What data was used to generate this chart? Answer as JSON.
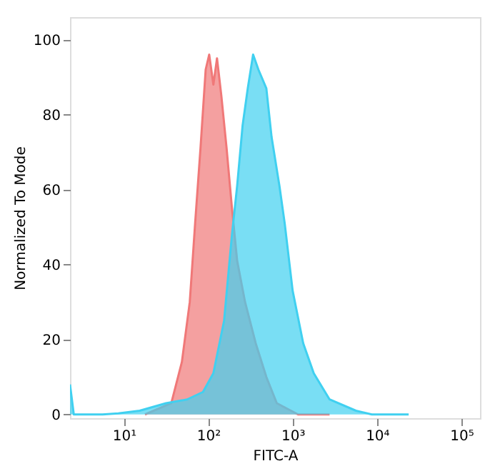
{
  "chart_data": {
    "type": "area",
    "xlabel": "FITC-A",
    "ylabel": "Normalized To Mode",
    "log": "x",
    "grid": false,
    "xlim": [
      2.3,
      166000
    ],
    "ylim": [
      -1,
      106
    ],
    "xticks": [
      {
        "value": 10,
        "label": "10¹"
      },
      {
        "value": 100,
        "label": "10²"
      },
      {
        "value": 1000,
        "label": "10³"
      },
      {
        "value": 10000,
        "label": "10⁴"
      },
      {
        "value": 100000,
        "label": "10⁵"
      }
    ],
    "yticks": [
      0,
      20,
      40,
      60,
      80,
      100
    ],
    "series": [
      {
        "color": "#f07878",
        "x": [
          17.8,
          36.5,
          48.7,
          60.4,
          69.9,
          80.9,
          93.2,
          102.6,
          115,
          127,
          143,
          165,
          191,
          220,
          273,
          365,
          488,
          649,
          1159,
          2740
        ],
        "values": [
          0,
          3,
          14,
          30,
          51,
          71,
          92,
          96,
          88,
          95,
          85,
          71,
          55,
          41,
          30,
          19,
          10,
          3,
          0,
          0
        ]
      },
      {
        "color": "#40d0f0",
        "x": [
          2.3,
          2.55,
          5.6,
          8.6,
          15.4,
          31.6,
          56.2,
          86.6,
          115,
          154,
          191,
          220,
          255,
          294,
          340,
          393,
          488,
          563,
          697,
          805,
          1000,
          1334,
          1778,
          2740,
          5623,
          8660,
          23700
        ],
        "values": [
          8,
          0,
          0,
          0.3,
          1,
          3,
          4,
          6,
          11,
          25,
          48,
          61,
          77,
          87,
          96,
          92,
          87,
          74,
          61,
          51,
          33,
          19,
          11,
          4,
          1,
          0,
          0
        ]
      }
    ]
  }
}
